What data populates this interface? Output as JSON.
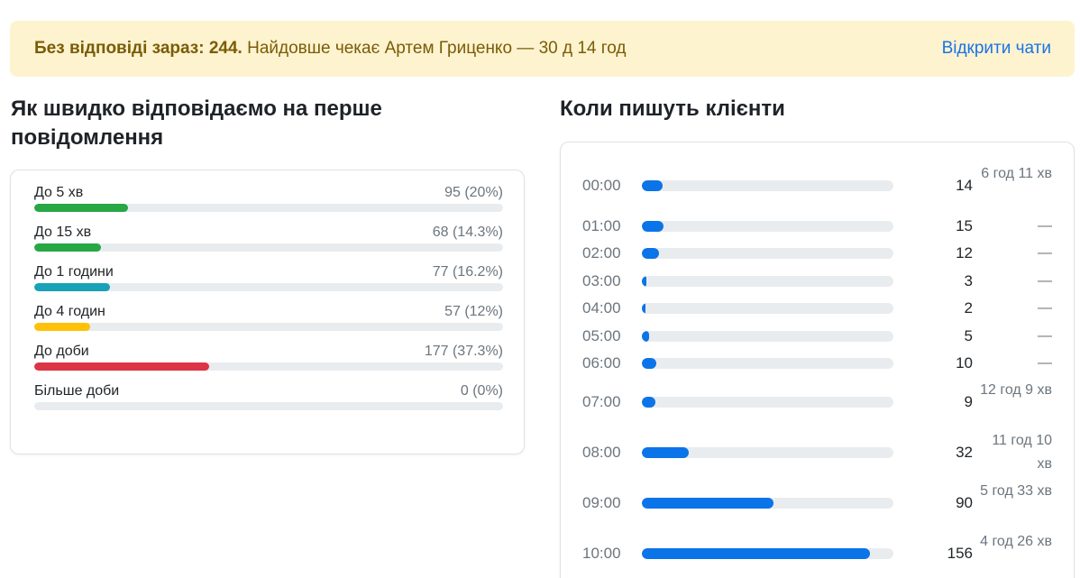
{
  "alert": {
    "bold": "Без відповіді зараз: 244.",
    "text": "Найдовше чекає Артем Гриценко — 30 д 14 год",
    "link": "Відкрити чати"
  },
  "response_times": {
    "title": "Як швидко відповідаємо на перше повідомлення",
    "rows": [
      {
        "label": "До 5 хв",
        "value": "95 (20%)",
        "fraction": 0.2,
        "color": "#28a745"
      },
      {
        "label": "До 15 хв",
        "value": "68 (14.3%)",
        "fraction": 0.143,
        "color": "#28a745"
      },
      {
        "label": "До 1 години",
        "value": "77 (16.2%)",
        "fraction": 0.162,
        "color": "#17a2b8"
      },
      {
        "label": "До 4 годин",
        "value": "57 (12%)",
        "fraction": 0.12,
        "color": "#ffc107"
      },
      {
        "label": "До доби",
        "value": "177 (37.3%)",
        "fraction": 0.373,
        "color": "#dc3545"
      },
      {
        "label": "Більше доби",
        "value": "0 (0%)",
        "fraction": 0.0,
        "color": "#6c757d"
      }
    ]
  },
  "hourly": {
    "title": "Коли пишуть клієнти",
    "max": 172,
    "rows": [
      {
        "time": "00:00",
        "count": 14,
        "avg": "6 год 11 хв"
      },
      {
        "time": "01:00",
        "count": 15,
        "avg": "—"
      },
      {
        "time": "02:00",
        "count": 12,
        "avg": "—"
      },
      {
        "time": "03:00",
        "count": 3,
        "avg": "—"
      },
      {
        "time": "04:00",
        "count": 2,
        "avg": "—"
      },
      {
        "time": "05:00",
        "count": 5,
        "avg": "—"
      },
      {
        "time": "06:00",
        "count": 10,
        "avg": "—"
      },
      {
        "time": "07:00",
        "count": 9,
        "avg": "12 год 9 хв"
      },
      {
        "time": "08:00",
        "count": 32,
        "avg": "11 год 10 хв"
      },
      {
        "time": "09:00",
        "count": 90,
        "avg": "5 год 33 хв"
      },
      {
        "time": "10:00",
        "count": 156,
        "avg": "4 год 26 хв"
      }
    ]
  }
}
